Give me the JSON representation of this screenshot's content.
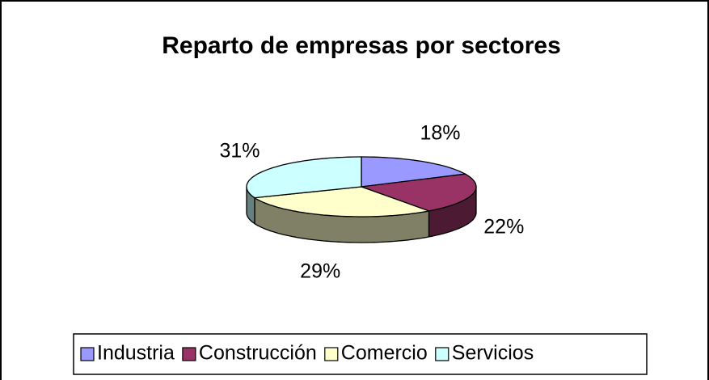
{
  "chart_data": {
    "type": "pie3d",
    "title": "Reparto de empresas por sectores",
    "categories": [
      "Industria",
      "Construcción",
      "Comercio",
      "Servicios"
    ],
    "values": [
      18,
      22,
      29,
      31
    ],
    "value_labels": [
      "18%",
      "22%",
      "29%",
      "31%"
    ],
    "colors": [
      "#9999ff",
      "#993366",
      "#ffffcc",
      "#ccffff"
    ],
    "legend": "bottom"
  }
}
